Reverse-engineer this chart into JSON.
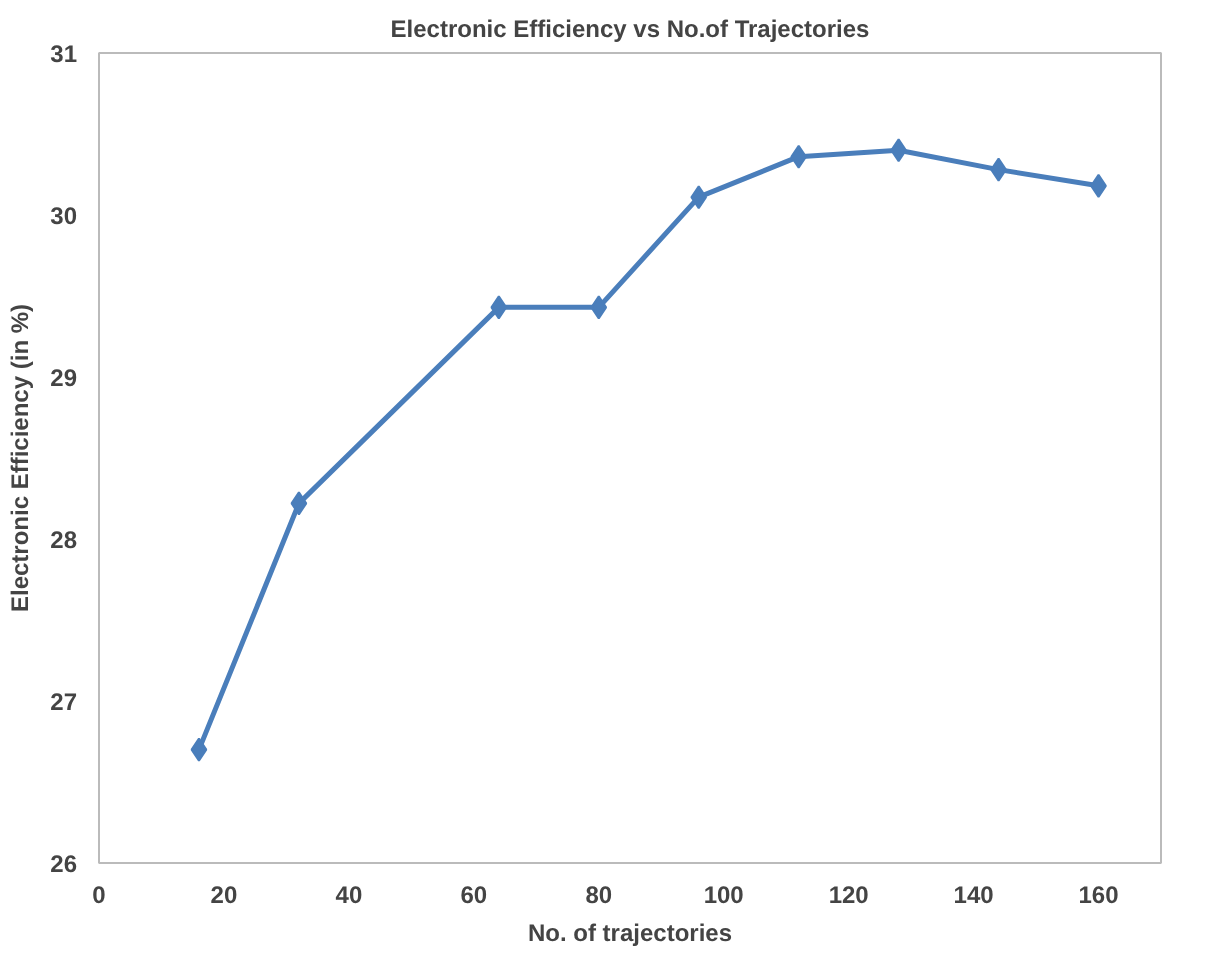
{
  "chart_data": {
    "type": "line",
    "title": "Electronic Efficiency vs No.of Trajectories",
    "xlabel": "No. of trajectories",
    "ylabel": "Electronic Efficiency (in %)",
    "x": [
      16,
      32,
      64,
      80,
      96,
      112,
      128,
      144,
      160
    ],
    "series": [
      {
        "color": "#4a7ebb",
        "values": [
          26.7,
          28.22,
          29.43,
          29.43,
          30.11,
          30.36,
          30.4,
          30.28,
          30.18
        ]
      }
    ],
    "xlim": [
      0,
      170
    ],
    "xticks": [
      0,
      20,
      40,
      60,
      80,
      100,
      120,
      140,
      160
    ],
    "ylim": [
      26,
      31
    ],
    "yticks": [
      26,
      27,
      28,
      29,
      30,
      31
    ],
    "grid": false,
    "marker": "diamond",
    "line_style": "solid"
  }
}
